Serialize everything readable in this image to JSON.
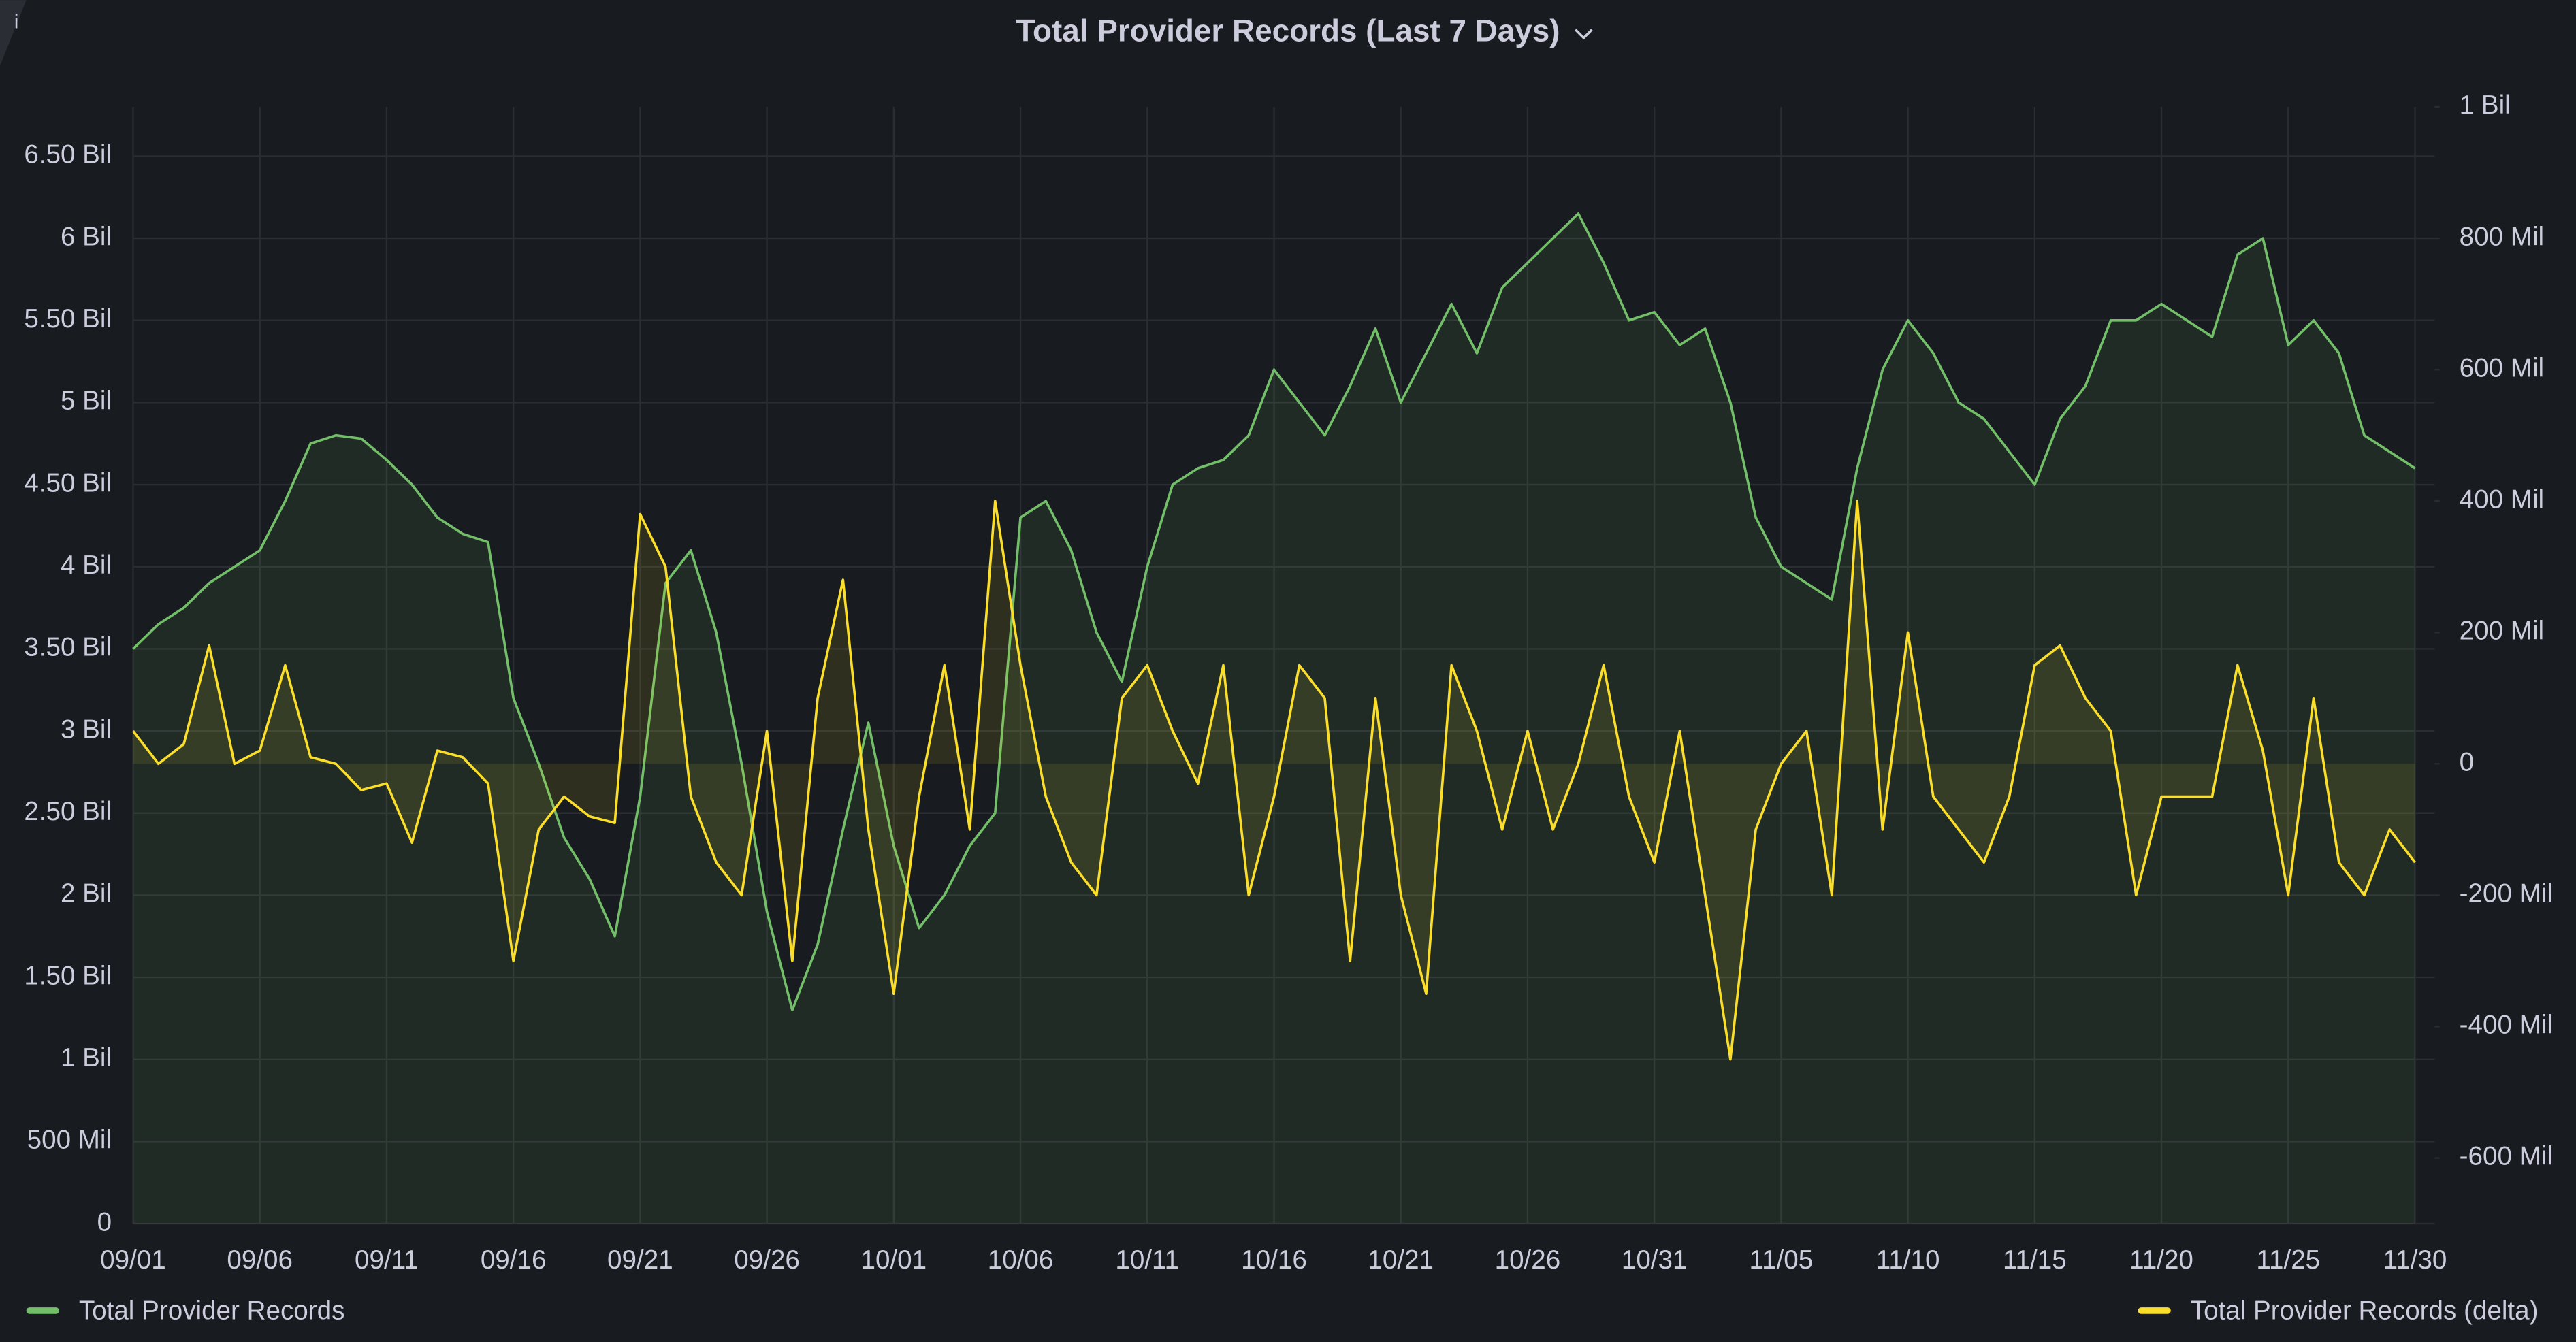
{
  "chart_data": {
    "type": "line",
    "title": "Total Provider Records (Last 7 Days)",
    "x": [
      "09/01",
      "09/02",
      "09/03",
      "09/04",
      "09/05",
      "09/06",
      "09/07",
      "09/08",
      "09/09",
      "09/10",
      "09/11",
      "09/12",
      "09/13",
      "09/14",
      "09/15",
      "09/16",
      "09/17",
      "09/18",
      "09/19",
      "09/20",
      "09/21",
      "09/22",
      "09/23",
      "09/24",
      "09/25",
      "09/26",
      "09/27",
      "09/28",
      "09/29",
      "09/30",
      "10/01",
      "10/02",
      "10/03",
      "10/04",
      "10/05",
      "10/06",
      "10/07",
      "10/08",
      "10/09",
      "10/10",
      "10/11",
      "10/12",
      "10/13",
      "10/14",
      "10/15",
      "10/16",
      "10/17",
      "10/18",
      "10/19",
      "10/20",
      "10/21",
      "10/22",
      "10/23",
      "10/24",
      "10/25",
      "10/26",
      "10/27",
      "10/28",
      "10/29",
      "10/30",
      "10/31",
      "11/01",
      "11/02",
      "11/03",
      "11/04",
      "11/05",
      "11/06",
      "11/07",
      "11/08",
      "11/09",
      "11/10",
      "11/11",
      "11/12",
      "11/13",
      "11/14",
      "11/15",
      "11/16",
      "11/17",
      "11/18",
      "11/19",
      "11/20",
      "11/21",
      "11/22",
      "11/23",
      "11/24",
      "11/25",
      "11/26",
      "11/27",
      "11/28",
      "11/29",
      "11/30"
    ],
    "xticks": [
      "09/01",
      "09/06",
      "09/11",
      "09/16",
      "09/21",
      "09/26",
      "10/01",
      "10/06",
      "10/11",
      "10/16",
      "10/21",
      "10/26",
      "10/31",
      "11/05",
      "11/10",
      "11/15",
      "11/20",
      "11/25",
      "11/30"
    ],
    "series": [
      {
        "name": "Total Provider Records",
        "color": "#73bf69",
        "axis": "y",
        "values": [
          3.5,
          3.65,
          3.75,
          3.9,
          4.0,
          4.1,
          4.4,
          4.75,
          4.8,
          4.78,
          4.65,
          4.5,
          4.3,
          4.2,
          4.15,
          3.2,
          2.8,
          2.35,
          2.1,
          1.75,
          2.6,
          3.9,
          4.1,
          3.6,
          2.8,
          1.9,
          1.3,
          1.7,
          2.4,
          3.05,
          2.3,
          1.8,
          2.0,
          2.3,
          2.5,
          4.3,
          4.4,
          4.1,
          3.6,
          3.3,
          4.0,
          4.5,
          4.6,
          4.65,
          4.8,
          5.2,
          5.0,
          4.8,
          5.1,
          5.45,
          5.0,
          5.3,
          5.6,
          5.3,
          5.7,
          5.85,
          6.0,
          6.15,
          5.85,
          5.5,
          5.55,
          5.35,
          5.45,
          5.0,
          4.3,
          4.0,
          3.9,
          3.8,
          4.6,
          5.2,
          5.5,
          5.3,
          5.0,
          4.9,
          4.7,
          4.5,
          4.9,
          5.1,
          5.5,
          5.5,
          5.6,
          5.5,
          5.4,
          5.9,
          6.0,
          5.35,
          5.5,
          5.3,
          4.8,
          4.7,
          4.6
        ]
      },
      {
        "name": "Total Provider Records (delta)",
        "color": "#fade2a",
        "axis": "y2",
        "values": [
          50,
          0,
          30,
          180,
          0,
          20,
          150,
          10,
          0,
          -40,
          -30,
          -120,
          20,
          10,
          -30,
          -300,
          -100,
          -50,
          -80,
          -90,
          380,
          300,
          -50,
          -150,
          -200,
          50,
          -300,
          100,
          280,
          -100,
          -350,
          -50,
          150,
          -100,
          400,
          150,
          -50,
          -150,
          -200,
          100,
          150,
          50,
          -30,
          150,
          -200,
          -50,
          150,
          100,
          -300,
          100,
          -200,
          -350,
          150,
          50,
          -100,
          50,
          -100,
          0,
          150,
          -50,
          -150,
          50,
          -200,
          -450,
          -100,
          0,
          50,
          -200,
          400,
          -100,
          200,
          -50,
          -100,
          -150,
          -50,
          150,
          180,
          100,
          50,
          -200,
          -50,
          -50,
          -50,
          150,
          20,
          -200,
          100,
          -150,
          -200,
          -100,
          -150
        ]
      }
    ],
    "ylim": [
      0,
      6.8
    ],
    "yticks": [
      0,
      {
        "value": 0.5,
        "label": "500 Mil"
      },
      {
        "value": 1,
        "label": "1 Bil"
      },
      {
        "value": 1.5,
        "label": "1.50 Bil"
      },
      {
        "value": 2,
        "label": "2 Bil"
      },
      {
        "value": 2.5,
        "label": "2.50 Bil"
      },
      {
        "value": 3,
        "label": "3 Bil"
      },
      {
        "value": 3.5,
        "label": "3.50 Bil"
      },
      {
        "value": 4,
        "label": "4 Bil"
      },
      {
        "value": 4.5,
        "label": "4.50 Bil"
      },
      {
        "value": 5,
        "label": "5 Bil"
      },
      {
        "value": 5.5,
        "label": "5.50 Bil"
      },
      {
        "value": 6,
        "label": "6 Bil"
      },
      {
        "value": 6.5,
        "label": "6.50 Bil"
      }
    ],
    "y2lim": [
      -700,
      1000
    ],
    "y2ticks": [
      {
        "value": -600,
        "label": "-600 Mil"
      },
      {
        "value": -400,
        "label": "-400 Mil"
      },
      {
        "value": -200,
        "label": "-200 Mil"
      },
      0,
      {
        "value": 200,
        "label": "200 Mil"
      },
      {
        "value": 400,
        "label": "400 Mil"
      },
      {
        "value": 600,
        "label": "600 Mil"
      },
      {
        "value": 800,
        "label": "800 Mil"
      },
      {
        "value": 1000,
        "label": "1 Bil"
      }
    ],
    "grid": true
  }
}
